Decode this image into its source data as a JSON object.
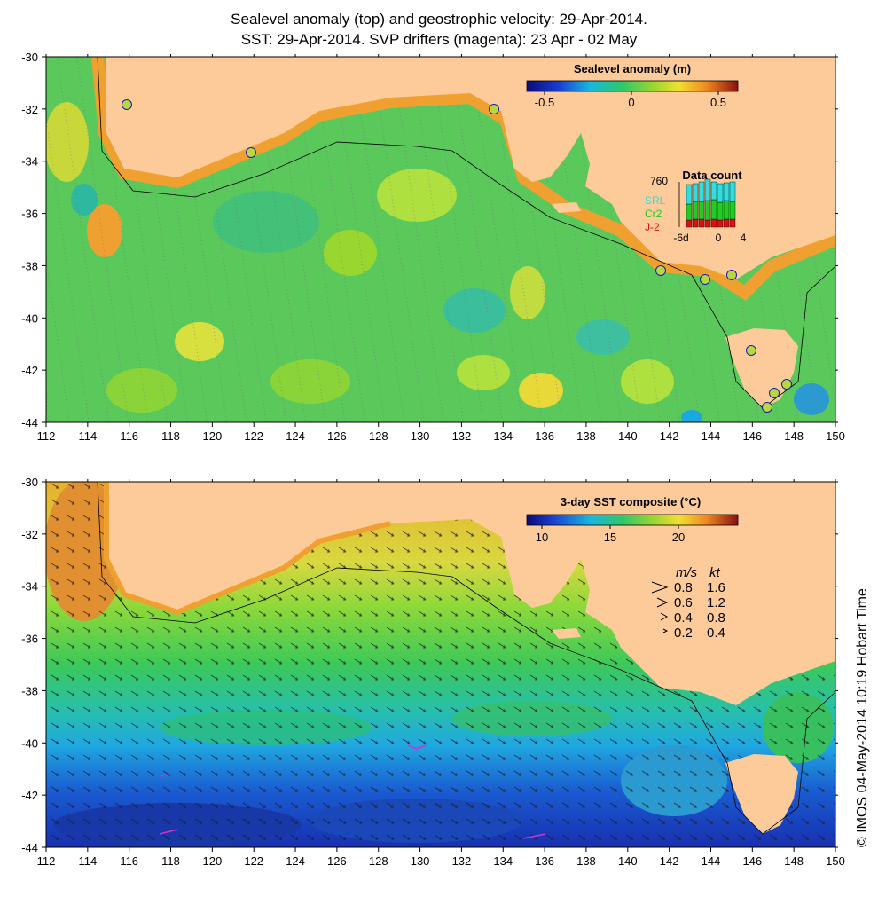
{
  "titles": {
    "line1": "Sealevel anomaly (top) and geostrophic velocity: 29-Apr-2014.",
    "line2": "SST: 29-Apr-2014. SVP drifters (magenta): 23 Apr - 02 May"
  },
  "axes": {
    "lon_ticks": [
      "112",
      "114",
      "116",
      "118",
      "120",
      "122",
      "124",
      "126",
      "128",
      "130",
      "132",
      "134",
      "136",
      "138",
      "140",
      "142",
      "144",
      "146",
      "148",
      "150"
    ],
    "lat_ticks": [
      "-30",
      "-32",
      "-34",
      "-36",
      "-38",
      "-40",
      "-42",
      "-44"
    ]
  },
  "top_map": {
    "colorbar_title": "Sealevel anomaly (m)",
    "colorbar_ticks": [
      "-0.5",
      "0",
      "0.5"
    ],
    "data_count": {
      "title": "Data count",
      "max_label": "760",
      "series": [
        "SRL",
        "Cr2",
        "J-2"
      ],
      "series_colors": [
        "#33dddd",
        "#22cc22",
        "#dd1111"
      ],
      "x_ticks": [
        "-6d",
        "0",
        "4"
      ]
    }
  },
  "bottom_map": {
    "colorbar_title": "3-day SST composite (°C)",
    "colorbar_ticks": [
      "10",
      "15",
      "20"
    ],
    "speed_legend": {
      "header_ms": "m/s",
      "header_kt": "kt",
      "rows": [
        {
          "ms": "0.8",
          "kt": "1.6"
        },
        {
          "ms": "0.6",
          "kt": "1.2"
        },
        {
          "ms": "0.4",
          "kt": "0.8"
        },
        {
          "ms": "0.2",
          "kt": "0.4"
        }
      ]
    }
  },
  "credit": "© IMOS 04-May-2014 10:19 Hobart Time",
  "colors": {
    "land": "#fdcb99",
    "ocean_mid": "#5bc85b",
    "warm": "#f2a32a",
    "cold": "#1b3cc4"
  }
}
